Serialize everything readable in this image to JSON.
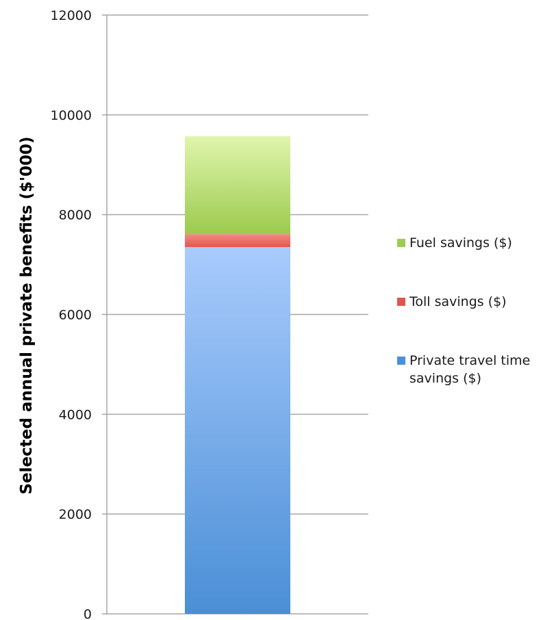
{
  "chart_data": {
    "type": "bar",
    "stacked": true,
    "categories": [
      ""
    ],
    "series": [
      {
        "name": "Private travel time savings ($)",
        "values": [
          7350
        ],
        "color_top": "#a9cbfd",
        "color_bottom": "#4a8fd6",
        "legend_color": "#4a90dc"
      },
      {
        "name": "Toll savings ($)",
        "values": [
          260
        ],
        "color_top": "#f28b86",
        "color_bottom": "#e2574f",
        "legend_color": "#e05550"
      },
      {
        "name": "Fuel savings ($)",
        "values": [
          1960
        ],
        "color_top": "#e0f5ad",
        "color_bottom": "#9ccb4e",
        "legend_color": "#9ccc55"
      }
    ],
    "legend_order": [
      "Fuel savings ($)",
      "Toll savings ($)",
      "Private travel time savings ($)"
    ],
    "ylabel": "Selected annual private benefits ($'000)",
    "xlabel": "",
    "ylim": [
      0,
      12000
    ],
    "yticks": [
      "0",
      "2000",
      "4000",
      "6000",
      "8000",
      "10000",
      "12000"
    ],
    "grid": true,
    "legend_position": "right"
  }
}
